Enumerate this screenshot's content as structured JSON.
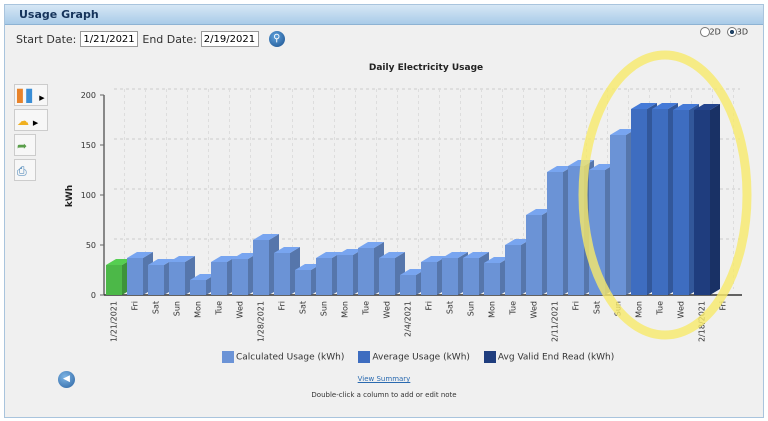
{
  "panel": {
    "title": "Usage Graph"
  },
  "toolbar": {
    "start_label": "Start Date:",
    "start_value": "1/21/2021",
    "end_label": "End Date:",
    "end_value": "2/19/2021",
    "view_2d": "2D",
    "view_3d": "3D"
  },
  "legend": [
    {
      "label": "Calculated Usage (kWh)",
      "color": "#6b93d6"
    },
    {
      "label": "Average Usage (kWh)",
      "color": "#3e6dc0"
    },
    {
      "label": "Avg Valid End Read (kWh)",
      "color": "#1f3d7e"
    }
  ],
  "footer": {
    "view_summary": "View Summary",
    "note": "Double-click a column to add or edit note"
  },
  "chart_data": {
    "type": "bar",
    "title": "Daily Electricity Usage",
    "ylabel": "kWh",
    "xlabel": "",
    "ylim": [
      0,
      200
    ],
    "yticks": [
      0,
      50,
      100,
      150,
      200
    ],
    "grid": true,
    "legend_placement": "bottom",
    "categories": [
      "1/21/2021",
      "Fri",
      "Sat",
      "Sun",
      "Mon",
      "Tue",
      "Wed",
      "1/28/2021",
      "Fri",
      "Sat",
      "Sun",
      "Mon",
      "Tue",
      "Wed",
      "2/4/2021",
      "Fri",
      "Sat",
      "Sun",
      "Mon",
      "Tue",
      "Wed",
      "2/11/2021",
      "Fri",
      "Sat",
      "Sun",
      "Mon",
      "Tue",
      "Wed",
      "2/18/2021",
      "Fri"
    ],
    "values": [
      30,
      37,
      30,
      33,
      15,
      33,
      36,
      55,
      42,
      25,
      37,
      40,
      47,
      37,
      20,
      33,
      37,
      37,
      32,
      50,
      80,
      123,
      129,
      125,
      160,
      186,
      186,
      185,
      185,
      null
    ],
    "series_type": [
      "actual",
      "calculated",
      "calculated",
      "calculated",
      "calculated",
      "calculated",
      "calculated",
      "calculated",
      "calculated",
      "calculated",
      "calculated",
      "calculated",
      "calculated",
      "calculated",
      "calculated",
      "calculated",
      "calculated",
      "calculated",
      "calculated",
      "calculated",
      "calculated",
      "calculated",
      "calculated",
      "calculated",
      "calculated",
      "average",
      "average",
      "average",
      "end_read",
      null
    ],
    "colors": {
      "actual": "#4cb848",
      "calculated": "#6b93d6",
      "average": "#3e6dc0",
      "end_read": "#1f3d7e"
    }
  }
}
